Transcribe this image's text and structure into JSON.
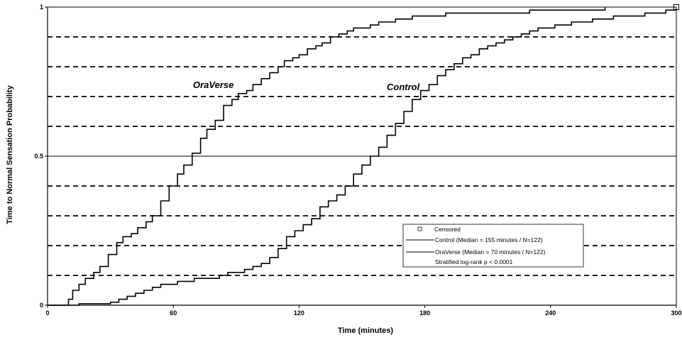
{
  "chart_data": {
    "type": "line",
    "title": "",
    "xlabel": "Time (minutes)",
    "ylabel": "Time to Normal Sensation Probability",
    "xlim": [
      0,
      300
    ],
    "ylim": [
      0,
      1
    ],
    "x_ticks": [
      "0",
      "60",
      "120",
      "180",
      "240",
      "300"
    ],
    "x_tick_values": [
      0,
      60,
      120,
      180,
      240,
      300
    ],
    "y_ticks": [
      "0",
      "0.5",
      "1"
    ],
    "y_tick_values": [
      0,
      0.5,
      1
    ],
    "dashed_gridlines": [
      0.1,
      0.2,
      0.3,
      0.4,
      0.6,
      0.7,
      0.8,
      0.9
    ],
    "solid_gridlines": [
      0.5
    ],
    "grid": true,
    "series": [
      {
        "name": "OraVerse",
        "label": "OraVerse",
        "color": "#000000",
        "x": [
          0,
          10,
          12,
          15,
          18,
          22,
          25,
          29,
          33,
          36,
          40,
          43,
          47,
          50,
          54,
          58,
          62,
          65,
          69,
          73,
          76,
          80,
          84,
          88,
          91,
          95,
          98,
          102,
          106,
          110,
          113,
          117,
          120,
          124,
          128,
          131,
          135,
          139,
          143,
          146,
          150,
          154,
          158,
          162,
          166,
          170,
          174,
          178,
          182,
          186,
          190,
          195,
          200,
          205,
          210,
          215,
          220,
          225,
          230,
          266
        ],
        "y": [
          0,
          0.02,
          0.05,
          0.07,
          0.09,
          0.11,
          0.13,
          0.17,
          0.21,
          0.23,
          0.24,
          0.26,
          0.28,
          0.3,
          0.35,
          0.4,
          0.44,
          0.47,
          0.51,
          0.56,
          0.59,
          0.62,
          0.67,
          0.69,
          0.71,
          0.72,
          0.74,
          0.76,
          0.78,
          0.8,
          0.82,
          0.83,
          0.84,
          0.86,
          0.87,
          0.88,
          0.9,
          0.91,
          0.92,
          0.93,
          0.93,
          0.94,
          0.95,
          0.95,
          0.96,
          0.96,
          0.97,
          0.97,
          0.97,
          0.97,
          0.98,
          0.98,
          0.98,
          0.98,
          0.98,
          0.98,
          0.98,
          0.98,
          0.99,
          1.0
        ]
      },
      {
        "name": "Control",
        "label": "Control",
        "color": "#000000",
        "x": [
          0,
          15,
          30,
          34,
          38,
          42,
          46,
          50,
          54,
          58,
          62,
          66,
          70,
          74,
          78,
          82,
          86,
          90,
          94,
          98,
          102,
          106,
          110,
          114,
          118,
          122,
          126,
          130,
          134,
          138,
          142,
          146,
          150,
          154,
          158,
          162,
          166,
          170,
          174,
          178,
          182,
          186,
          190,
          194,
          198,
          202,
          206,
          210,
          214,
          218,
          222,
          226,
          230,
          234,
          238,
          242,
          246,
          250,
          255,
          260,
          265,
          270,
          275,
          280,
          285,
          290,
          295,
          300
        ],
        "y": [
          0,
          0.005,
          0.01,
          0.02,
          0.03,
          0.04,
          0.05,
          0.06,
          0.07,
          0.07,
          0.08,
          0.08,
          0.09,
          0.09,
          0.09,
          0.1,
          0.11,
          0.11,
          0.12,
          0.13,
          0.14,
          0.16,
          0.19,
          0.23,
          0.25,
          0.27,
          0.29,
          0.33,
          0.35,
          0.37,
          0.4,
          0.44,
          0.47,
          0.5,
          0.53,
          0.57,
          0.61,
          0.65,
          0.69,
          0.72,
          0.74,
          0.77,
          0.79,
          0.81,
          0.83,
          0.84,
          0.86,
          0.87,
          0.88,
          0.89,
          0.9,
          0.91,
          0.92,
          0.93,
          0.93,
          0.94,
          0.94,
          0.95,
          0.95,
          0.96,
          0.96,
          0.97,
          0.97,
          0.97,
          0.98,
          0.98,
          0.99,
          0.99
        ]
      }
    ],
    "censored_points": [
      {
        "x": 300,
        "y": 1.0
      }
    ],
    "legend": {
      "placement": "bottom-right",
      "entries": [
        {
          "marker": "square",
          "text": "Censored"
        },
        {
          "marker": "line",
          "text": "Control (Median = 155 minutes / N=122)"
        },
        {
          "marker": "line",
          "text": "OraVerse (Median = 70 minutes / N=122)"
        },
        {
          "marker": "none",
          "text": "Stratified log-rank p < 0.0001"
        }
      ]
    }
  }
}
